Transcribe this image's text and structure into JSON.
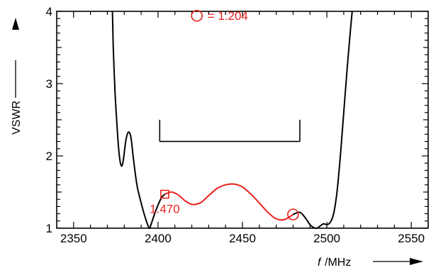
{
  "chart_data": {
    "type": "line",
    "xlabel_italic": "f",
    "xlabel_unit": "/MHz",
    "ylabel": "VSWR",
    "xlim": [
      2340,
      2560
    ],
    "ylim": [
      1,
      4
    ],
    "x_ticks": [
      "2350",
      "2400",
      "2450",
      "2500",
      "2550"
    ],
    "y_ticks": [
      "1",
      "2",
      "3",
      "4"
    ],
    "grid": false,
    "colors": {
      "black_curve": "#000000",
      "red_curve": "#e8201c"
    },
    "series": [
      {
        "color": "black",
        "points": [
          [
            2373,
            4.0
          ],
          [
            2373.5,
            3.5
          ],
          [
            2374.5,
            2.9
          ],
          [
            2375.5,
            2.5
          ],
          [
            2376.5,
            2.15
          ],
          [
            2377.5,
            1.93
          ],
          [
            2378.5,
            1.86
          ],
          [
            2379.5,
            1.95
          ],
          [
            2381,
            2.22
          ],
          [
            2382.5,
            2.33
          ],
          [
            2384,
            2.25
          ],
          [
            2385.5,
            1.95
          ],
          [
            2387.5,
            1.6
          ],
          [
            2390,
            1.35
          ],
          [
            2392,
            1.18
          ],
          [
            2394,
            1.04
          ],
          [
            2395,
            1.0
          ],
          [
            2396,
            1.06
          ],
          [
            2398,
            1.2
          ],
          [
            2400,
            1.32
          ],
          [
            2402,
            1.42
          ],
          [
            2404,
            1.47
          ]
        ]
      },
      {
        "color": "red",
        "points": [
          [
            2404,
            1.47
          ],
          [
            2408,
            1.5
          ],
          [
            2412,
            1.46
          ],
          [
            2416,
            1.38
          ],
          [
            2420,
            1.33
          ],
          [
            2425,
            1.35
          ],
          [
            2430,
            1.45
          ],
          [
            2435,
            1.55
          ],
          [
            2440,
            1.6
          ],
          [
            2445,
            1.61
          ],
          [
            2450,
            1.57
          ],
          [
            2455,
            1.47
          ],
          [
            2460,
            1.35
          ],
          [
            2465,
            1.22
          ],
          [
            2470,
            1.13
          ],
          [
            2475,
            1.12
          ],
          [
            2480,
            1.19
          ]
        ]
      },
      {
        "color": "black",
        "points": [
          [
            2480,
            1.19
          ],
          [
            2484,
            1.22
          ],
          [
            2487,
            1.15
          ],
          [
            2490,
            1.05
          ],
          [
            2492,
            1.01
          ],
          [
            2494,
            1.0
          ],
          [
            2496,
            1.03
          ],
          [
            2498,
            1.06
          ],
          [
            2500,
            1.05
          ],
          [
            2502,
            1.08
          ],
          [
            2504,
            1.2
          ],
          [
            2506,
            1.5
          ],
          [
            2508,
            2.0
          ],
          [
            2510,
            2.6
          ],
          [
            2512,
            3.2
          ],
          [
            2514,
            3.75
          ],
          [
            2515,
            4.0
          ]
        ]
      }
    ],
    "bandwidth_bracket": {
      "x_start": 2401,
      "x_end": 2484,
      "y": 2.2,
      "y_top": 2.5
    },
    "markers": [
      {
        "shape": "square",
        "x": 2404,
        "y": 1.47,
        "label": "1.470",
        "label_x": 2404,
        "label_y": 1.21
      },
      {
        "shape": "circle",
        "x": 2480,
        "y": 1.19
      }
    ],
    "legend": {
      "symbol": "circle",
      "text": "=  1.204",
      "x": 2423,
      "y": 3.88
    }
  }
}
